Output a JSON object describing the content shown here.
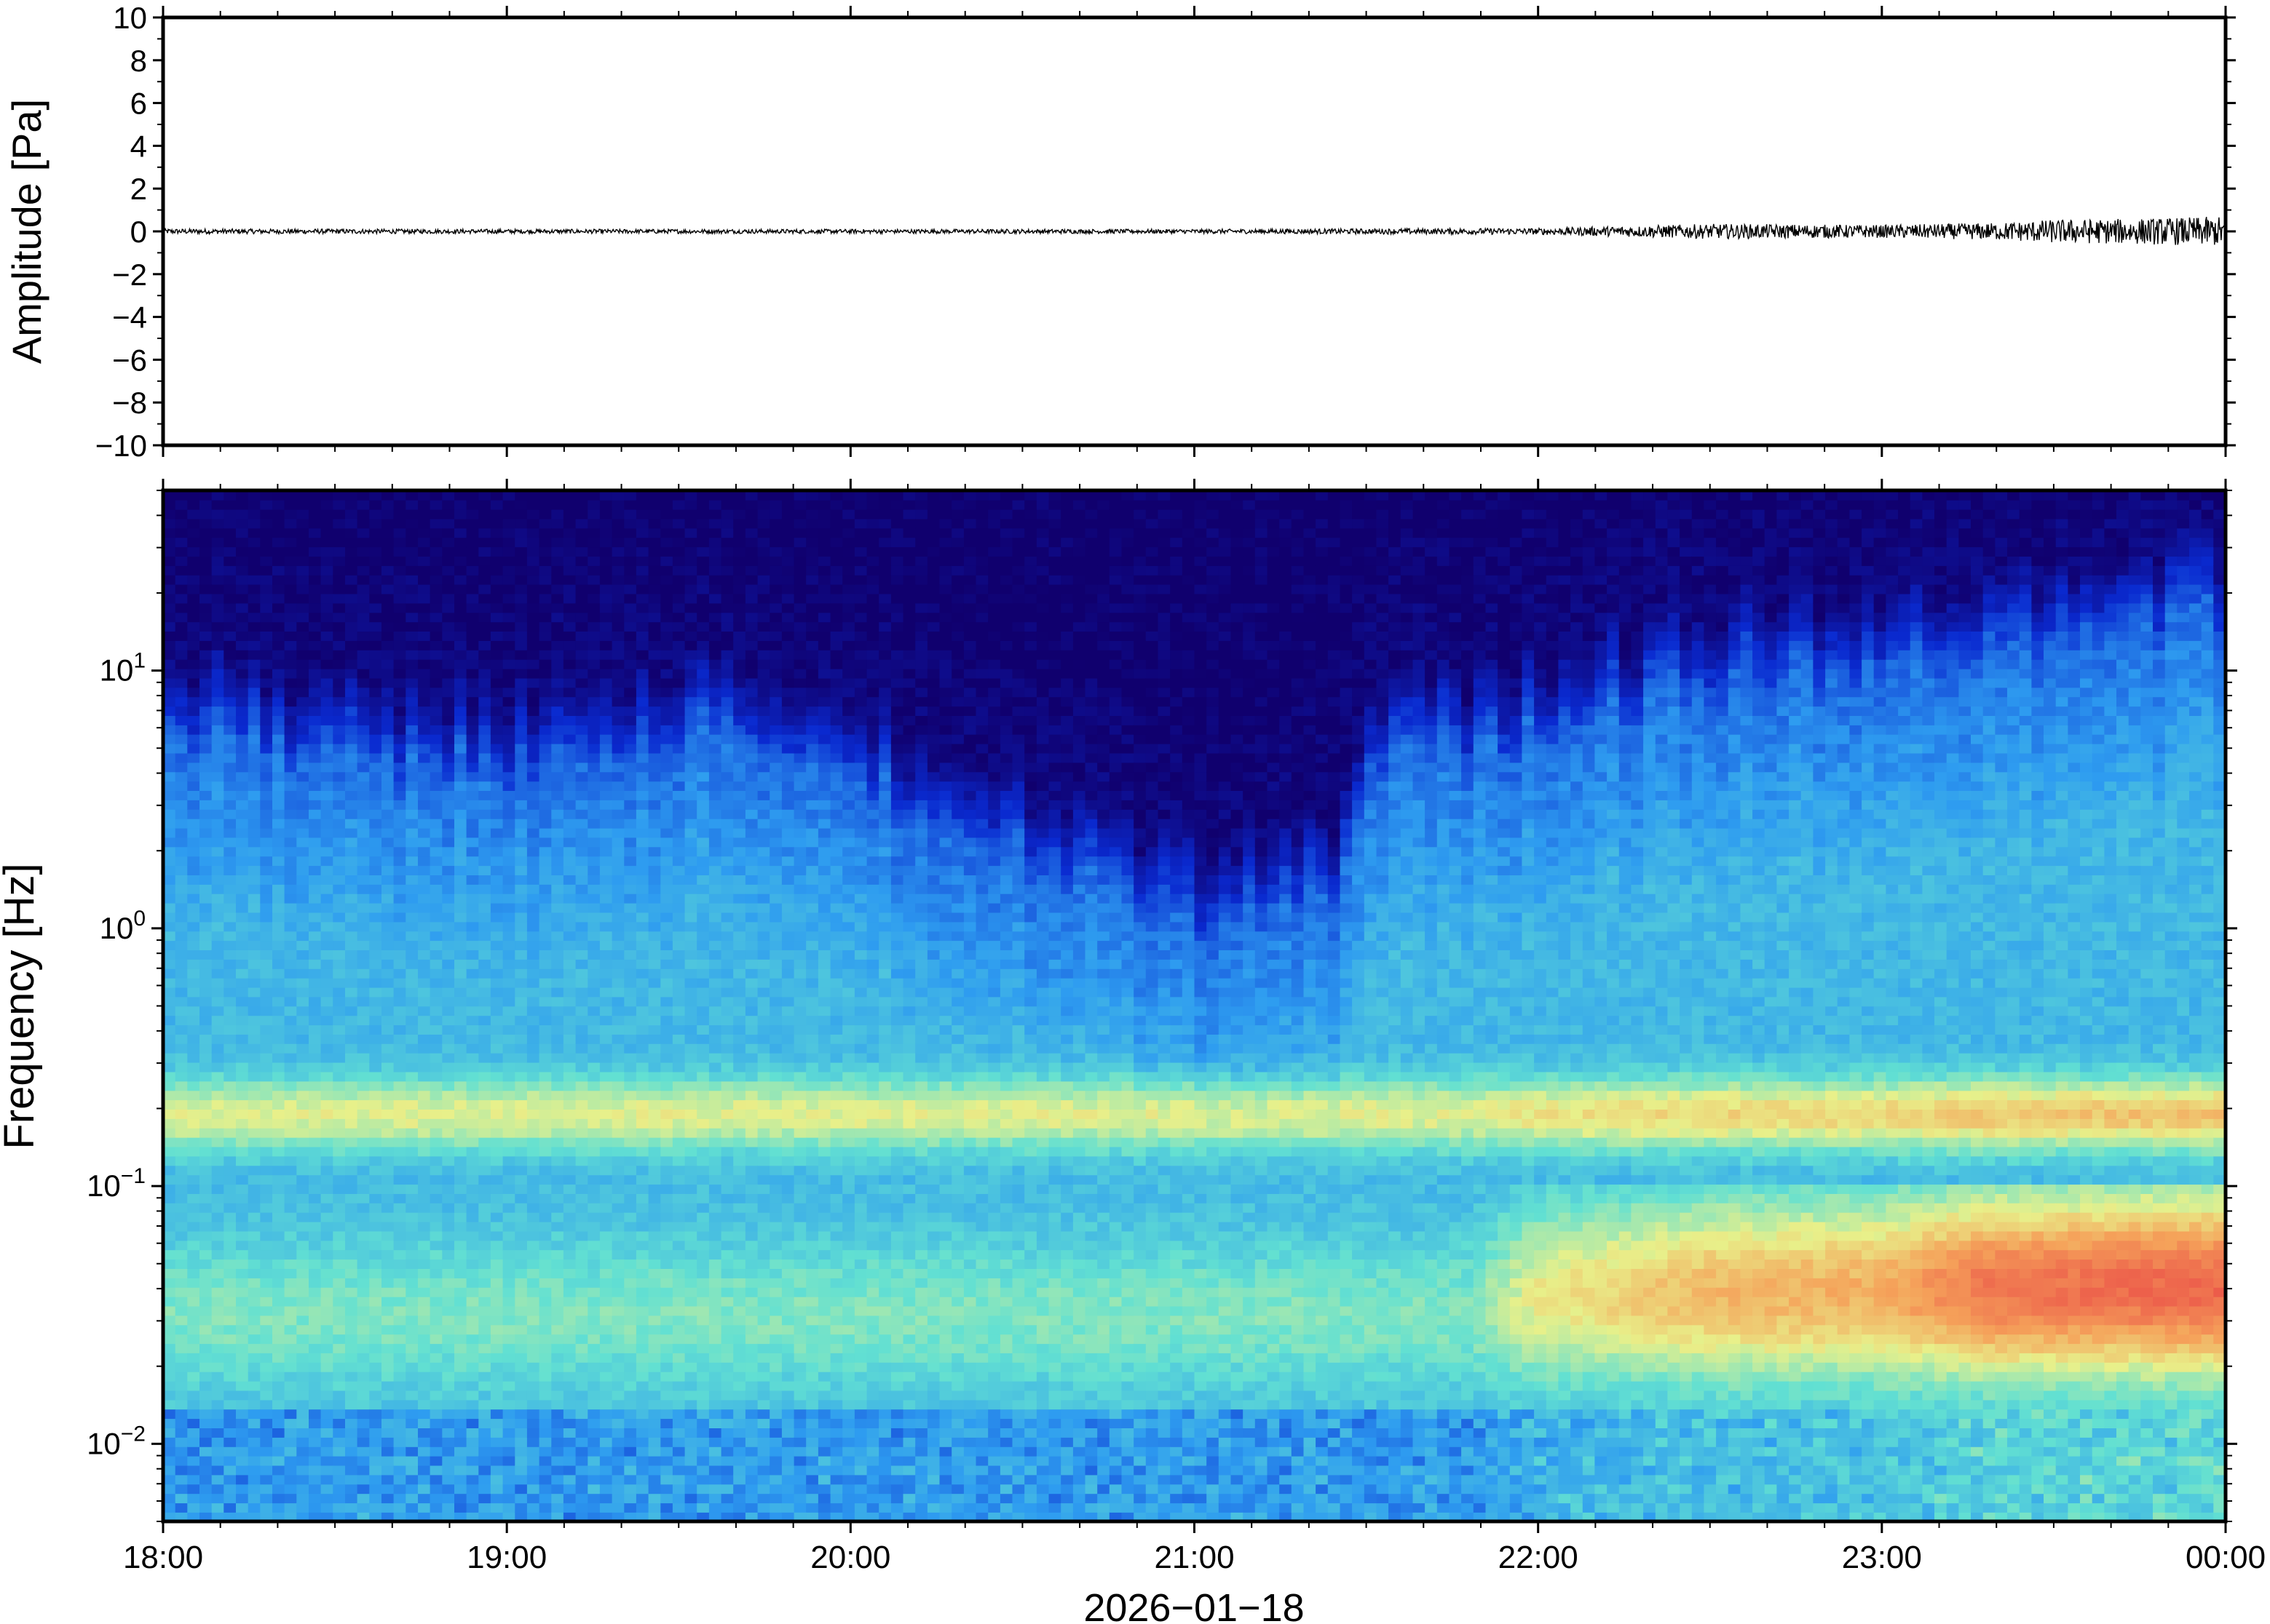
{
  "chart_data": [
    {
      "type": "line",
      "ylabel": "Amplitude [Pa]",
      "ylim": [
        -10,
        10
      ],
      "y_ticks": [
        "10",
        "8",
        "6",
        "4",
        "2",
        "0",
        "−2",
        "−4",
        "−6",
        "−8",
        "−10"
      ],
      "x_ticks": [
        "18:00",
        "19:00",
        "20:00",
        "21:00",
        "22:00",
        "23:00",
        "00:00"
      ],
      "xlim": [
        "18:00",
        "00:00"
      ],
      "noise_envelope": {
        "x": [
          "18:00",
          "19:00",
          "20:00",
          "21:00",
          "22:00",
          "22:30",
          "23:00",
          "23:20",
          "23:30",
          "23:45",
          "00:00"
        ],
        "amplitude": [
          0.12,
          0.1,
          0.1,
          0.1,
          0.15,
          0.35,
          0.3,
          0.4,
          0.55,
          0.6,
          0.7
        ]
      },
      "grid": false
    },
    {
      "type": "heatmap",
      "ylabel": "Frequency [Hz]",
      "yscale": "log",
      "ylim": [
        0.005,
        50
      ],
      "y_ticks": [
        {
          "base": "10",
          "exp": "1"
        },
        {
          "base": "10",
          "exp": "0"
        },
        {
          "base": "10",
          "exp": "−1"
        },
        {
          "base": "10",
          "exp": "−2"
        }
      ],
      "x_ticks": [
        "18:00",
        "19:00",
        "20:00",
        "21:00",
        "22:00",
        "23:00",
        "00:00"
      ],
      "xlabel": "2026−01−18",
      "xlim": [
        "18:00",
        "00:00"
      ],
      "colormap": "jet",
      "colors": {
        "very_low": "#10006e",
        "low": "#0a2ad0",
        "mid_low": "#2e9cf0",
        "mid": "#62e0d2",
        "mid_high": "#e8f08a",
        "high": "#f5a25a",
        "very_high": "#ec5a4a"
      },
      "grid": false
    }
  ]
}
